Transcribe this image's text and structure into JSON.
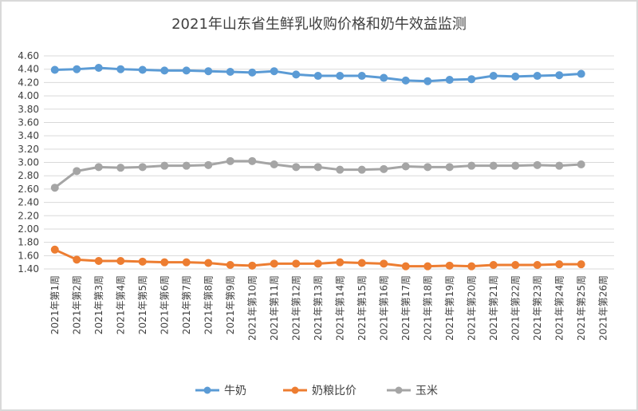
{
  "chart_data": {
    "type": "line",
    "title": "2021年山东省生鲜乳收购价格和奶牛效益监测",
    "xlabel": "",
    "ylabel": "",
    "ylim": [
      1.4,
      4.6
    ],
    "ytick_step": 0.2,
    "grid": true,
    "legend_position": "bottom",
    "categories": [
      "2021年第1周",
      "2021年第2周",
      "2021年第3周",
      "2021年第4周",
      "2021年第5周",
      "2021年第6周",
      "2021年第7周",
      "2021年第8周",
      "2021年第9周",
      "2021年第10周",
      "2021年第11周",
      "2021年第12周",
      "2021年第13周",
      "2021年第14周",
      "2021年第15周",
      "2021年第16周",
      "2021年第17周",
      "2021年第18周",
      "2021年第19周",
      "2021年第20周",
      "2021年第21周",
      "2021年第22周",
      "2021年第23周",
      "2021年第24周",
      "2021年第25周",
      "2021年第26周"
    ],
    "series": [
      {
        "name": "牛奶",
        "color": "#5b9bd5",
        "values": [
          4.39,
          4.4,
          4.42,
          4.4,
          4.39,
          4.38,
          4.38,
          4.37,
          4.36,
          4.35,
          4.37,
          4.32,
          4.3,
          4.3,
          4.3,
          4.27,
          4.23,
          4.22,
          4.24,
          4.25,
          4.3,
          4.29,
          4.3,
          4.31,
          4.33,
          null
        ]
      },
      {
        "name": "奶粮比价",
        "color": "#ed7d31",
        "values": [
          1.69,
          1.54,
          1.52,
          1.52,
          1.51,
          1.5,
          1.5,
          1.49,
          1.46,
          1.45,
          1.48,
          1.48,
          1.48,
          1.5,
          1.49,
          1.48,
          1.44,
          1.44,
          1.45,
          1.44,
          1.46,
          1.46,
          1.46,
          1.47,
          1.47,
          null
        ]
      },
      {
        "name": "玉米",
        "color": "#a5a5a5",
        "values": [
          2.62,
          2.87,
          2.93,
          2.92,
          2.93,
          2.95,
          2.95,
          2.96,
          3.02,
          3.02,
          2.97,
          2.93,
          2.93,
          2.89,
          2.89,
          2.9,
          2.94,
          2.93,
          2.93,
          2.95,
          2.95,
          2.95,
          2.96,
          2.95,
          2.97,
          null
        ]
      }
    ]
  }
}
